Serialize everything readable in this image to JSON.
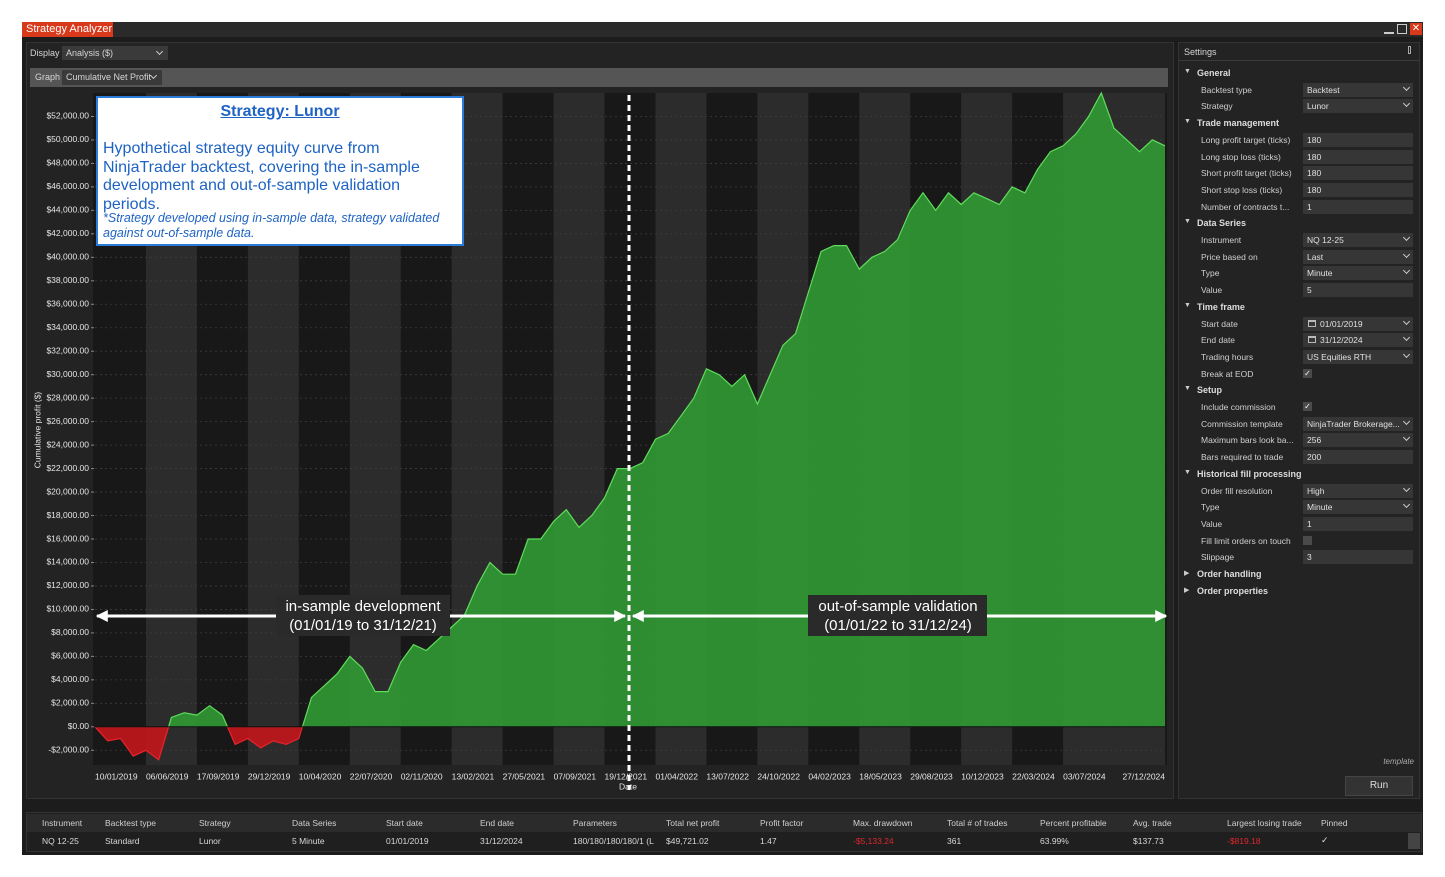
{
  "window": {
    "title": "Strategy Analyzer"
  },
  "toolbar": {
    "display": {
      "label": "Display",
      "value": "Analysis ($)"
    },
    "graph": {
      "label": "Graph",
      "value": "Cumulative Net Profit"
    }
  },
  "chart_data": {
    "type": "area",
    "x_label": "Date",
    "y_label": "Cumulative profit ($)",
    "color": "#2f9a33",
    "negative_color": "#c3161b",
    "line_color": "#5fdc5a",
    "negative_line_color": "#e8232a",
    "categories": [
      "10/01/2019",
      null,
      null,
      null,
      "06/06/2019",
      null,
      null,
      null,
      "17/09/2019",
      null,
      null,
      null,
      "29/12/2019",
      null,
      null,
      null,
      "10/04/2020",
      null,
      null,
      null,
      "22/07/2020",
      null,
      null,
      null,
      "02/11/2020",
      null,
      null,
      null,
      "13/02/2021",
      null,
      null,
      null,
      "27/05/2021",
      null,
      null,
      null,
      "07/09/2021",
      null,
      null,
      null,
      "19/12/2021",
      null,
      null,
      null,
      "01/04/2022",
      null,
      null,
      null,
      "13/07/2022",
      null,
      null,
      null,
      "24/10/2022",
      null,
      null,
      null,
      "04/02/2023",
      null,
      null,
      null,
      "18/05/2023",
      null,
      null,
      null,
      "29/08/2023",
      null,
      null,
      null,
      "10/12/2023",
      null,
      null,
      null,
      "22/03/2024",
      null,
      null,
      null,
      "03/07/2024",
      null,
      null,
      null,
      null,
      null,
      null,
      null,
      "27/12/2024"
    ],
    "values": [
      0,
      -1200,
      -1000,
      -2500,
      -2000,
      -2800,
      800,
      1200,
      1000,
      1800,
      1000,
      -1500,
      -1000,
      -1800,
      -1200,
      -1500,
      -1000,
      2500,
      3500,
      4500,
      6000,
      5000,
      3000,
      3000,
      5500,
      7000,
      6500,
      7500,
      8500,
      9500,
      12000,
      14000,
      13000,
      13000,
      16000,
      16000,
      17500,
      18500,
      17000,
      18000,
      19500,
      22000,
      22000,
      22500,
      24500,
      25000,
      26500,
      28000,
      30500,
      30000,
      29000,
      30000,
      27500,
      30000,
      32500,
      33500,
      37000,
      40500,
      41000,
      41000,
      39000,
      40000,
      40500,
      41500,
      44000,
      45500,
      44000,
      45500,
      44500,
      45500,
      45000,
      44500,
      46000,
      45500,
      47500,
      49000,
      49500,
      50500,
      52000,
      54000,
      51000,
      50000,
      49000,
      50000,
      49500
    ],
    "ylim": [
      -3000,
      54000
    ],
    "yticks": [
      {
        "value": -2000,
        "label": "-$2,000.00"
      },
      {
        "value": 0,
        "label": "$0.00"
      },
      {
        "value": 2000,
        "label": "$2,000.00"
      },
      {
        "value": 4000,
        "label": "$4,000.00"
      },
      {
        "value": 6000,
        "label": "$6,000.00"
      },
      {
        "value": 8000,
        "label": "$8,000.00"
      },
      {
        "value": 10000,
        "label": "$10,000.00"
      },
      {
        "value": 12000,
        "label": "$12,000.00"
      },
      {
        "value": 14000,
        "label": "$14,000.00"
      },
      {
        "value": 16000,
        "label": "$16,000.00"
      },
      {
        "value": 18000,
        "label": "$18,000.00"
      },
      {
        "value": 20000,
        "label": "$20,000.00"
      },
      {
        "value": 22000,
        "label": "$22,000.00"
      },
      {
        "value": 24000,
        "label": "$24,000.00"
      },
      {
        "value": 26000,
        "label": "$26,000.00"
      },
      {
        "value": 28000,
        "label": "$28,000.00"
      },
      {
        "value": 30000,
        "label": "$30,000.00"
      },
      {
        "value": 32000,
        "label": "$32,000.00"
      },
      {
        "value": 34000,
        "label": "$34,000.00"
      },
      {
        "value": 36000,
        "label": "$36,000.00"
      },
      {
        "value": 38000,
        "label": "$38,000.00"
      },
      {
        "value": 40000,
        "label": "$40,000.00"
      },
      {
        "value": 42000,
        "label": "$42,000.00"
      },
      {
        "value": 44000,
        "label": "$44,000.00"
      },
      {
        "value": 46000,
        "label": "$46,000.00"
      },
      {
        "value": 48000,
        "label": "$48,000.00"
      },
      {
        "value": 50000,
        "label": "$50,000.00"
      },
      {
        "value": 52000,
        "label": "$52,000.00"
      }
    ],
    "grid": true,
    "annotations": {
      "box_title": "Strategy: Lunor",
      "box_text": "Hypothetical strategy equity curve from NinjaTrader backtest, covering the in-sample development and out-of-sample validation periods.",
      "box_note": "*Strategy developed using in-sample data, strategy validated against out-of-sample data.",
      "in_sample": [
        "in-sample development",
        "(01/01/19 to 31/12/21)"
      ],
      "out_of_sample": [
        "out-of-sample validation",
        "(01/01/22 to 31/12/24)"
      ]
    }
  },
  "settings": {
    "title": "Settings",
    "sections": [
      {
        "name": "General",
        "expanded": true,
        "rows": [
          {
            "label": "Backtest type",
            "value": "Backtest",
            "dropdown": true
          },
          {
            "label": "Strategy",
            "value": "Lunor",
            "dropdown": true
          }
        ]
      },
      {
        "name": "Trade management",
        "expanded": true,
        "rows": [
          {
            "label": "Long profit target (ticks)",
            "value": "180"
          },
          {
            "label": "Long stop loss (ticks)",
            "value": "180"
          },
          {
            "label": "Short profit target (ticks)",
            "value": "180"
          },
          {
            "label": "Short stop loss (ticks)",
            "value": "180"
          },
          {
            "label": "Number of contracts t...",
            "value": "1"
          }
        ]
      },
      {
        "name": "Data Series",
        "expanded": true,
        "rows": [
          {
            "label": "Instrument",
            "value": "NQ 12-25",
            "dropdown": true
          },
          {
            "label": "Price based on",
            "value": "Last",
            "dropdown": true
          },
          {
            "label": "Type",
            "value": "Minute",
            "dropdown": true
          },
          {
            "label": "Value",
            "value": "5"
          }
        ]
      },
      {
        "name": "Time frame",
        "expanded": true,
        "rows": [
          {
            "label": "Start date",
            "value": "01/01/2019",
            "dropdown": true,
            "calendar": true
          },
          {
            "label": "End date",
            "value": "31/12/2024",
            "dropdown": true,
            "calendar": true
          },
          {
            "label": "Trading hours",
            "value": "US Equities RTH",
            "dropdown": true
          },
          {
            "label": "Break at EOD",
            "checked": true
          }
        ]
      },
      {
        "name": "Setup",
        "expanded": true,
        "rows": [
          {
            "label": "Include commission",
            "checked": true
          },
          {
            "label": "Commission template",
            "value": "NinjaTrader Brokerage...",
            "dropdown": true
          },
          {
            "label": "Maximum bars look ba...",
            "value": "256",
            "dropdown": true
          },
          {
            "label": "Bars required to trade",
            "value": "200"
          }
        ]
      },
      {
        "name": "Historical fill processing",
        "expanded": true,
        "rows": [
          {
            "label": "Order fill resolution",
            "value": "High",
            "dropdown": true
          },
          {
            "label": "Type",
            "value": "Minute",
            "dropdown": true
          },
          {
            "label": "Value",
            "value": "1"
          },
          {
            "label": "Fill limit orders on touch",
            "checked": false
          },
          {
            "label": "Slippage",
            "value": "3"
          }
        ]
      },
      {
        "name": "Order handling",
        "expanded": false
      },
      {
        "name": "Order properties",
        "expanded": false
      }
    ],
    "template": "template",
    "run": "Run"
  },
  "results": {
    "headers": [
      "Instrument",
      "Backtest type",
      "Strategy",
      "Data Series",
      "Start date",
      "End date",
      "Parameters",
      "Total net profit",
      "Profit factor",
      "Max. drawdown",
      "Total # of trades",
      "Percent profitable",
      "Avg. trade",
      "Largest losing trade",
      "Pinned"
    ],
    "rows": [
      [
        "NQ 12-25",
        "Standard",
        "Lunor",
        "5 Minute",
        "01/01/2019",
        "31/12/2024",
        "180/180/180/180/1 (L",
        "$49,721.02",
        "1.47",
        "-$5,133.24",
        "361",
        "63.99%",
        "$137.73",
        "-$819.18",
        true
      ]
    ]
  }
}
